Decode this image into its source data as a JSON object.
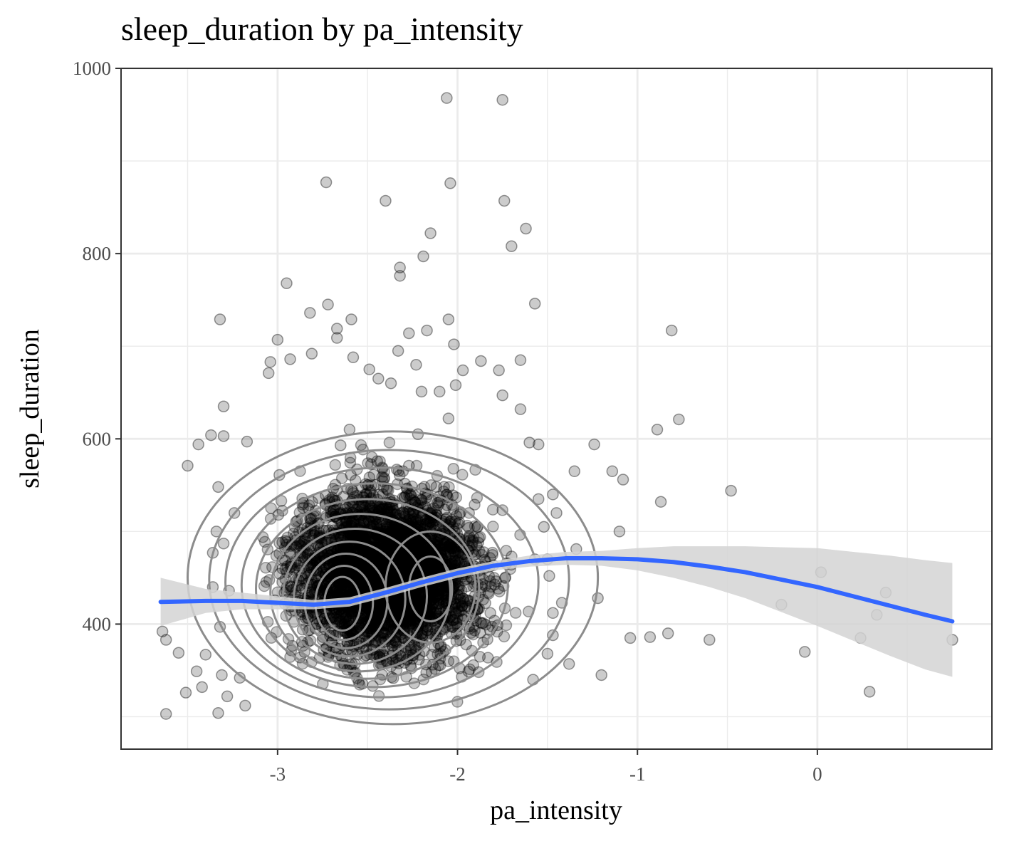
{
  "chart_data": {
    "type": "scatter",
    "title": "sleep_duration by pa_intensity",
    "xlabel": "pa_intensity",
    "ylabel": "sleep_duration",
    "xlim": [
      -3.87,
      0.97
    ],
    "ylim": [
      265,
      1000
    ],
    "x_ticks": [
      -3,
      -2,
      -1,
      0
    ],
    "x_tick_labels": [
      "-3",
      "-2",
      "-1",
      "0"
    ],
    "y_ticks": [
      400,
      600,
      800,
      1000
    ],
    "y_tick_labels": [
      "400",
      "600",
      "800",
      "1000"
    ],
    "grid": true,
    "colors": {
      "points": "#000000",
      "smooth": "#3366ff",
      "ribbon": "#d4d4d4",
      "contour": "#8c8c8c",
      "grid": "#ebebeb",
      "panel_border": "#333333"
    },
    "points": [
      [
        -2.06,
        968
      ],
      [
        -1.75,
        966
      ],
      [
        -2.73,
        877
      ],
      [
        -2.04,
        876
      ],
      [
        -2.4,
        857
      ],
      [
        -1.74,
        857
      ],
      [
        -2.15,
        822
      ],
      [
        -1.62,
        827
      ],
      [
        -1.7,
        808
      ],
      [
        -2.19,
        797
      ],
      [
        -2.32,
        785
      ],
      [
        -2.32,
        776
      ],
      [
        -2.95,
        768
      ],
      [
        -1.57,
        746
      ],
      [
        -2.72,
        745
      ],
      [
        -2.82,
        736
      ],
      [
        -3.32,
        729
      ],
      [
        -2.59,
        729
      ],
      [
        -2.05,
        729
      ],
      [
        -2.67,
        719
      ],
      [
        -2.17,
        717
      ],
      [
        -2.27,
        714
      ],
      [
        -2.67,
        709
      ],
      [
        -3.0,
        707
      ],
      [
        -2.33,
        695
      ],
      [
        -2.81,
        692
      ],
      [
        -2.58,
        688
      ],
      [
        -2.02,
        702
      ],
      [
        -1.87,
        684
      ],
      [
        -1.65,
        685
      ],
      [
        -3.04,
        683
      ],
      [
        -2.93,
        686
      ],
      [
        -2.23,
        680
      ],
      [
        -1.77,
        674
      ],
      [
        -3.05,
        671
      ],
      [
        -2.49,
        675
      ],
      [
        -2.44,
        665
      ],
      [
        -1.97,
        674
      ],
      [
        -2.37,
        660
      ],
      [
        -2.2,
        651
      ],
      [
        -2.1,
        651
      ],
      [
        -1.75,
        647
      ],
      [
        -3.3,
        635
      ],
      [
        -1.65,
        632
      ],
      [
        -0.89,
        610
      ],
      [
        -0.77,
        621
      ],
      [
        -0.81,
        717
      ],
      [
        -2.01,
        658
      ],
      [
        -1.24,
        594
      ],
      [
        -1.55,
        594
      ],
      [
        -3.44,
        594
      ],
      [
        -3.17,
        597
      ],
      [
        -3.3,
        603
      ],
      [
        -3.37,
        604
      ],
      [
        -3.5,
        571
      ],
      [
        -2.65,
        593
      ],
      [
        -2.99,
        561
      ],
      [
        -1.35,
        565
      ],
      [
        -1.08,
        556
      ],
      [
        -0.48,
        544
      ],
      [
        -1.14,
        565
      ],
      [
        -0.87,
        532
      ],
      [
        -1.1,
        500
      ],
      [
        -1.34,
        481
      ],
      [
        -1.42,
        423
      ],
      [
        -1.22,
        428
      ],
      [
        -3.34,
        500
      ],
      [
        -3.3,
        487
      ],
      [
        -3.33,
        548
      ],
      [
        -3.24,
        520
      ],
      [
        -3.36,
        477
      ],
      [
        -3.36,
        440
      ],
      [
        -3.27,
        436
      ],
      [
        -3.32,
        397
      ],
      [
        -3.4,
        367
      ],
      [
        -3.45,
        349
      ],
      [
        -3.42,
        332
      ],
      [
        -3.55,
        369
      ],
      [
        -3.64,
        392
      ],
      [
        -3.62,
        383
      ],
      [
        -3.51,
        326
      ],
      [
        -3.62,
        303
      ],
      [
        -3.33,
        304
      ],
      [
        -3.28,
        322
      ],
      [
        -3.18,
        312
      ],
      [
        -3.21,
        342
      ],
      [
        -3.31,
        345
      ],
      [
        -2.22,
        605
      ],
      [
        -2.05,
        622
      ],
      [
        -2.27,
        571
      ],
      [
        -2.6,
        610
      ],
      [
        -1.6,
        596
      ],
      [
        -1.55,
        535
      ],
      [
        -1.38,
        357
      ],
      [
        -1.2,
        345
      ],
      [
        -1.04,
        385
      ],
      [
        -0.93,
        386
      ],
      [
        -0.83,
        390
      ],
      [
        -0.6,
        383
      ],
      [
        -0.2,
        421
      ],
      [
        -0.07,
        370
      ],
      [
        0.02,
        456
      ],
      [
        0.24,
        385
      ],
      [
        0.29,
        327
      ],
      [
        0.33,
        410
      ],
      [
        0.38,
        434
      ],
      [
        0.75,
        383
      ],
      [
        -1.58,
        340
      ],
      [
        -1.47,
        388
      ],
      [
        -1.5,
        368
      ],
      [
        -1.47,
        412
      ],
      [
        -1.5,
        470
      ],
      [
        -1.45,
        520
      ],
      [
        -1.47,
        540
      ],
      [
        -1.52,
        505
      ],
      [
        -1.57,
        470
      ],
      [
        -1.49,
        452
      ]
    ],
    "smooth": {
      "x": [
        -3.65,
        -3.4,
        -3.2,
        -3.0,
        -2.8,
        -2.6,
        -2.4,
        -2.2,
        -2.0,
        -1.8,
        -1.6,
        -1.4,
        -1.2,
        -1.0,
        -0.8,
        -0.6,
        -0.4,
        -0.2,
        0.0,
        0.2,
        0.4,
        0.6,
        0.75
      ],
      "y": [
        424,
        425,
        425,
        423,
        421,
        424,
        434,
        445,
        455,
        463,
        468,
        471,
        471,
        470,
        467,
        462,
        456,
        448,
        440,
        430,
        420,
        410,
        403
      ],
      "ymin": [
        398,
        412,
        416,
        416,
        416,
        419,
        429,
        440,
        450,
        458,
        462,
        464,
        463,
        458,
        450,
        440,
        428,
        413,
        398,
        382,
        366,
        351,
        343
      ],
      "ymax": [
        450,
        438,
        434,
        430,
        426,
        429,
        439,
        450,
        460,
        468,
        474,
        478,
        479,
        482,
        484,
        484,
        484,
        483,
        482,
        478,
        474,
        469,
        466
      ]
    },
    "contours": [
      {
        "cx": -2.36,
        "cy": 450,
        "rx": 1.14,
        "ry": 158
      },
      {
        "cx": -2.38,
        "cy": 448,
        "rx": 1.0,
        "ry": 140
      },
      {
        "cx": -2.42,
        "cy": 445,
        "rx": 0.87,
        "ry": 124
      },
      {
        "cx": -2.46,
        "cy": 442,
        "rx": 0.74,
        "ry": 110
      },
      {
        "cx": -2.5,
        "cy": 438,
        "rx": 0.62,
        "ry": 97
      },
      {
        "cx": -2.54,
        "cy": 434,
        "rx": 0.5,
        "ry": 85
      },
      {
        "cx": -2.57,
        "cy": 430,
        "rx": 0.4,
        "ry": 73
      },
      {
        "cx": -2.6,
        "cy": 427,
        "rx": 0.31,
        "ry": 62
      },
      {
        "cx": -2.62,
        "cy": 425,
        "rx": 0.23,
        "ry": 51
      },
      {
        "cx": -2.63,
        "cy": 423,
        "rx": 0.16,
        "ry": 40
      },
      {
        "cx": -2.64,
        "cy": 422,
        "rx": 0.1,
        "ry": 29
      },
      {
        "cx": -2.15,
        "cy": 440,
        "rx": 0.25,
        "ry": 60
      },
      {
        "cx": -2.15,
        "cy": 438,
        "rx": 0.12,
        "ry": 35
      }
    ]
  }
}
